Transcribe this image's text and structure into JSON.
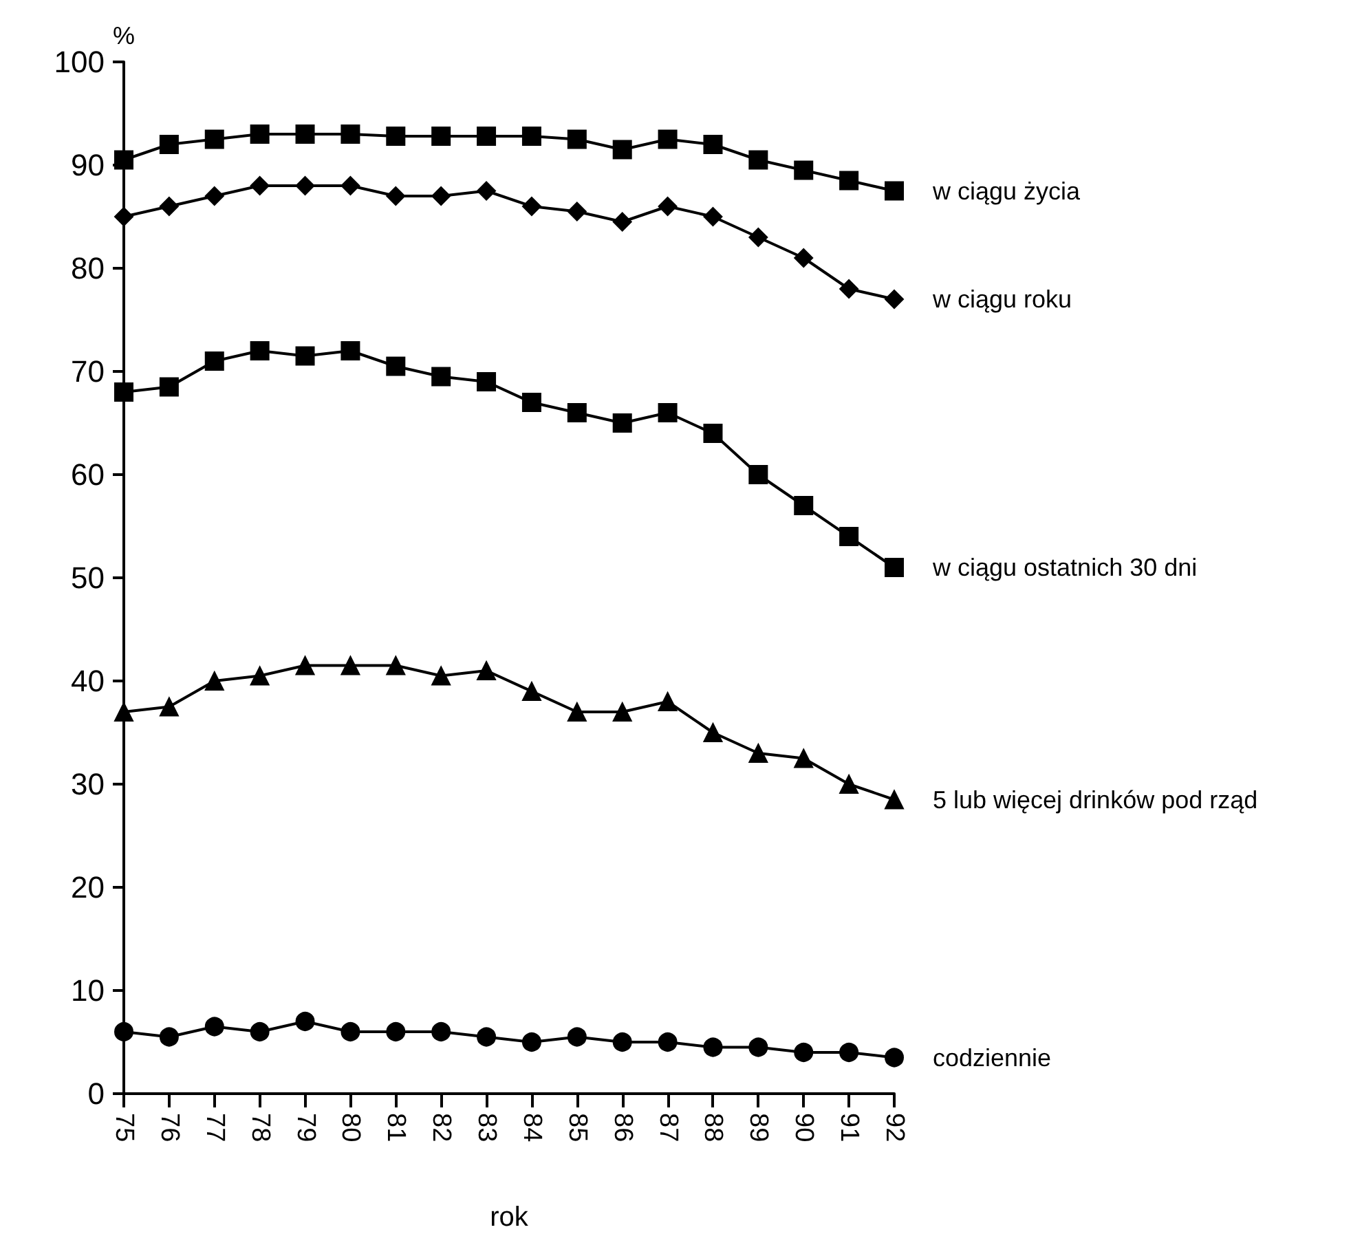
{
  "chart_data": {
    "type": "line",
    "xlabel": "rok",
    "ylabel": "%",
    "categories": [
      "75",
      "76",
      "77",
      "78",
      "79",
      "80",
      "81",
      "82",
      "83",
      "84",
      "85",
      "86",
      "87",
      "88",
      "89",
      "90",
      "91",
      "92"
    ],
    "series": [
      {
        "name": "w ciągu życia",
        "color": "#000000",
        "marker": "square",
        "values": [
          90.5,
          92,
          92.5,
          93,
          93,
          93,
          92.8,
          92.8,
          92.8,
          92.8,
          92.5,
          91.5,
          92.5,
          92,
          90.5,
          89.5,
          88.5,
          87.5
        ]
      },
      {
        "name": "w ciągu roku",
        "color": "#000000",
        "marker": "diamond",
        "values": [
          85,
          86,
          87,
          88,
          88,
          88,
          87,
          87,
          87.5,
          86,
          85.5,
          84.5,
          86,
          85,
          83,
          81,
          78,
          77
        ]
      },
      {
        "name": "w ciągu ostatnich 30 dni",
        "color": "#000000",
        "marker": "square",
        "values": [
          68,
          68.5,
          71,
          72,
          71.5,
          72,
          70.5,
          69.5,
          69,
          67,
          66,
          65,
          66,
          64,
          60,
          57,
          54,
          51
        ]
      },
      {
        "name": "5 lub więcej drinków pod rząd",
        "color": "#000000",
        "marker": "triangle",
        "values": [
          37,
          37.5,
          40,
          40.5,
          41.5,
          41.5,
          41.5,
          40.5,
          41,
          39,
          37,
          37,
          38,
          35,
          33,
          32.5,
          30,
          28.5
        ]
      },
      {
        "name": "codziennie",
        "color": "#000000",
        "marker": "circle",
        "values": [
          6,
          5.5,
          6.5,
          6,
          7,
          6,
          6,
          6,
          5.5,
          5,
          5.5,
          5,
          5,
          4.5,
          4.5,
          4,
          4,
          3.5
        ]
      }
    ],
    "ylim": [
      0,
      100
    ],
    "yticks": [
      0,
      10,
      20,
      30,
      40,
      50,
      60,
      70,
      80,
      90,
      100
    ],
    "grid": false,
    "legend": false,
    "line_style": "solid"
  }
}
